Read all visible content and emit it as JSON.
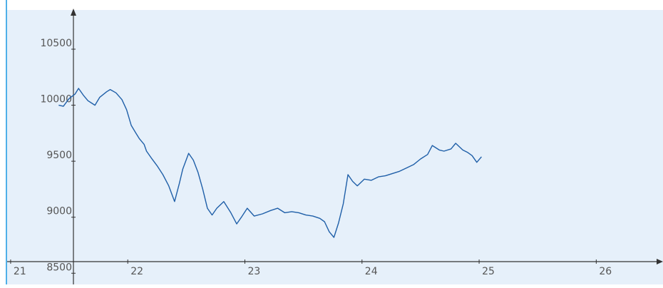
{
  "colors": {
    "plot_background": "#e6f0fa",
    "left_accent": "#4fb0e8",
    "axis": "#333333",
    "line": "#1f5fa8",
    "tick_text": "#555555"
  },
  "chart_data": {
    "type": "line",
    "title": "",
    "xlabel": "",
    "ylabel": "",
    "xlim": [
      20.97,
      26.57
    ],
    "ylim": [
      8400,
      10850
    ],
    "grid": false,
    "legend": "none",
    "x_ticks": [
      21,
      22,
      23,
      24,
      25,
      26
    ],
    "x_tick_labels": [
      "21",
      "22",
      "23",
      "24",
      "25",
      "26"
    ],
    "y_ticks": [
      8500,
      9000,
      9500,
      10000,
      10500
    ],
    "y_tick_labels": [
      "8500",
      "9000",
      "9500",
      "10000",
      "10500"
    ],
    "series": [
      {
        "x": [
          21.41,
          21.45,
          21.5,
          21.55,
          21.58,
          21.62,
          21.66,
          21.72,
          21.76,
          21.82,
          21.85,
          21.9,
          21.95,
          21.99,
          22.03,
          22.07,
          22.1,
          22.14,
          22.16,
          22.2,
          22.25,
          22.3,
          22.35,
          22.4,
          22.44,
          22.47,
          22.52,
          22.56,
          22.6,
          22.64,
          22.68,
          22.72,
          22.76,
          22.82,
          22.88,
          22.93,
          22.97,
          23.02,
          23.08,
          23.15,
          23.22,
          23.28,
          23.34,
          23.4,
          23.46,
          23.52,
          23.58,
          23.64,
          23.68,
          23.72,
          23.76,
          23.8,
          23.84,
          23.88,
          23.92,
          23.96,
          24.02,
          24.08,
          24.14,
          24.2,
          24.26,
          24.32,
          24.38,
          24.44,
          24.5,
          24.56,
          24.6,
          24.66,
          24.7,
          24.76,
          24.8,
          24.86,
          24.9,
          24.94,
          24.98,
          25.02
        ],
        "y": [
          10000,
          9990,
          10060,
          10100,
          10150,
          10090,
          10040,
          10000,
          10070,
          10120,
          10140,
          10110,
          10050,
          9960,
          9820,
          9750,
          9700,
          9650,
          9590,
          9530,
          9460,
          9380,
          9280,
          9140,
          9300,
          9430,
          9570,
          9510,
          9400,
          9250,
          9080,
          9020,
          9080,
          9140,
          9040,
          8940,
          9000,
          9080,
          9010,
          9030,
          9060,
          9080,
          9040,
          9050,
          9040,
          9020,
          9010,
          8990,
          8960,
          8870,
          8820,
          8950,
          9120,
          9380,
          9320,
          9280,
          9340,
          9330,
          9360,
          9370,
          9390,
          9410,
          9440,
          9470,
          9520,
          9560,
          9640,
          9600,
          9590,
          9610,
          9660,
          9600,
          9580,
          9550,
          9490,
          9540
        ]
      }
    ]
  }
}
